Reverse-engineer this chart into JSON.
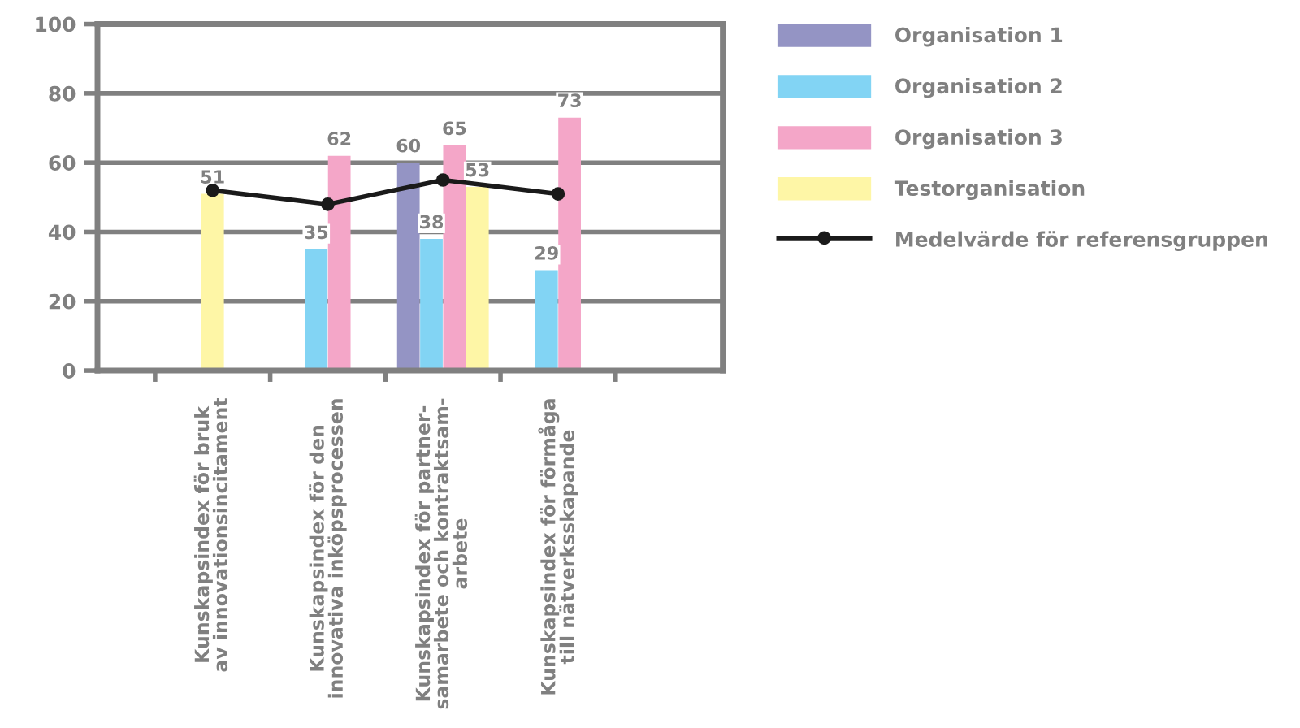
{
  "chart_data": {
    "type": "bar",
    "categories": [
      null,
      "Kunskapsindex för bruk\nav innovationsincitament",
      "Kunskapsindex för den\ninnovativa inköpsprocessen",
      "Kunskapsindex för partner-\nsamarbete och kontraktsam-\narbete",
      "Kunskapsindex för förmåga\ntill nätverksskapande",
      null
    ],
    "series": [
      {
        "name": "Organisation 1",
        "color": "#9494c4",
        "values": [
          null,
          null,
          null,
          60,
          null,
          null
        ],
        "value_labels": [
          null,
          null,
          null,
          "60",
          null,
          null
        ]
      },
      {
        "name": "Organisation 2",
        "color": "#82d4f4",
        "values": [
          null,
          null,
          35,
          38,
          29,
          null
        ],
        "value_labels": [
          null,
          null,
          "35",
          "38",
          "29",
          null
        ]
      },
      {
        "name": "Organisation 3",
        "color": "#f4a6c8",
        "values": [
          null,
          null,
          62,
          65,
          73,
          null
        ],
        "value_labels": [
          null,
          null,
          "62",
          "65",
          "73",
          null
        ]
      },
      {
        "name": "Testorganisation",
        "color": "#fef6a6",
        "values": [
          null,
          51,
          null,
          53,
          null,
          null
        ],
        "value_labels": [
          null,
          "51",
          null,
          "53",
          null,
          null
        ]
      },
      {
        "name": "Medelvärde för referensgruppen",
        "type": "line",
        "color": "#1a1a1a",
        "marker": "circle",
        "line_style": "solid",
        "values": [
          null,
          52,
          48,
          55,
          51,
          null
        ]
      }
    ],
    "ylim": [
      0,
      100
    ],
    "yticks": [
      0,
      20,
      40,
      60,
      80,
      100
    ],
    "grid": "y",
    "legend": "right"
  }
}
